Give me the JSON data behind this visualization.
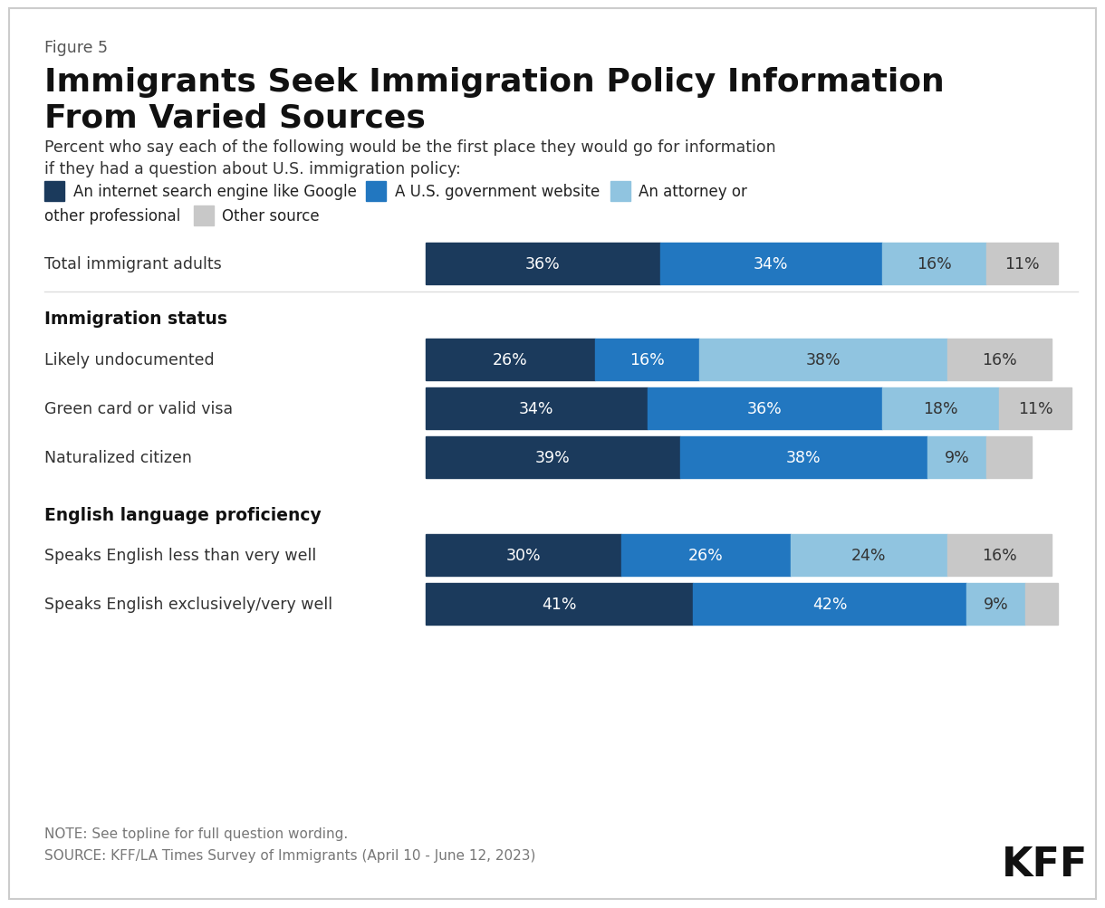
{
  "figure_label": "Figure 5",
  "title_line1": "Immigrants Seek Immigration Policy Information",
  "title_line2": "From Varied Sources",
  "subtitle_line1": "Percent who say each of the following would be the first place they would go for information",
  "subtitle_line2": "if they had a question about U.S. immigration policy:",
  "data": {
    "Total immigrant adults": [
      36,
      34,
      16,
      11
    ],
    "Likely undocumented": [
      26,
      16,
      38,
      16
    ],
    "Green card or valid visa": [
      34,
      36,
      18,
      11
    ],
    "Naturalized citizen": [
      39,
      38,
      9,
      7
    ],
    "Speaks English less than very well": [
      30,
      26,
      24,
      16
    ],
    "Speaks English exclusively/very well": [
      41,
      42,
      9,
      5
    ]
  },
  "bar_rows": [
    "Total immigrant adults",
    "HEADER:Immigration status",
    "Likely undocumented",
    "Green card or valid visa",
    "Naturalized citizen",
    "HEADER:English language proficiency",
    "Speaks English less than very well",
    "Speaks English exclusively/very well"
  ],
  "colors": [
    "#1b3a5c",
    "#2277c0",
    "#90c4e0",
    "#c8c8c8"
  ],
  "legend_labels": [
    "An internet search engine like Google",
    "A U.S. government website",
    "An attorney or",
    "other professional",
    "Other source"
  ],
  "note_line1": "NOTE: See topline for full question wording.",
  "note_line2": "SOURCE: KFF/LA Times Survey of Immigrants (April 10 - June 12, 2023)",
  "background_color": "#ffffff",
  "border_color": "#cccccc",
  "bar_label_threshold": 8
}
